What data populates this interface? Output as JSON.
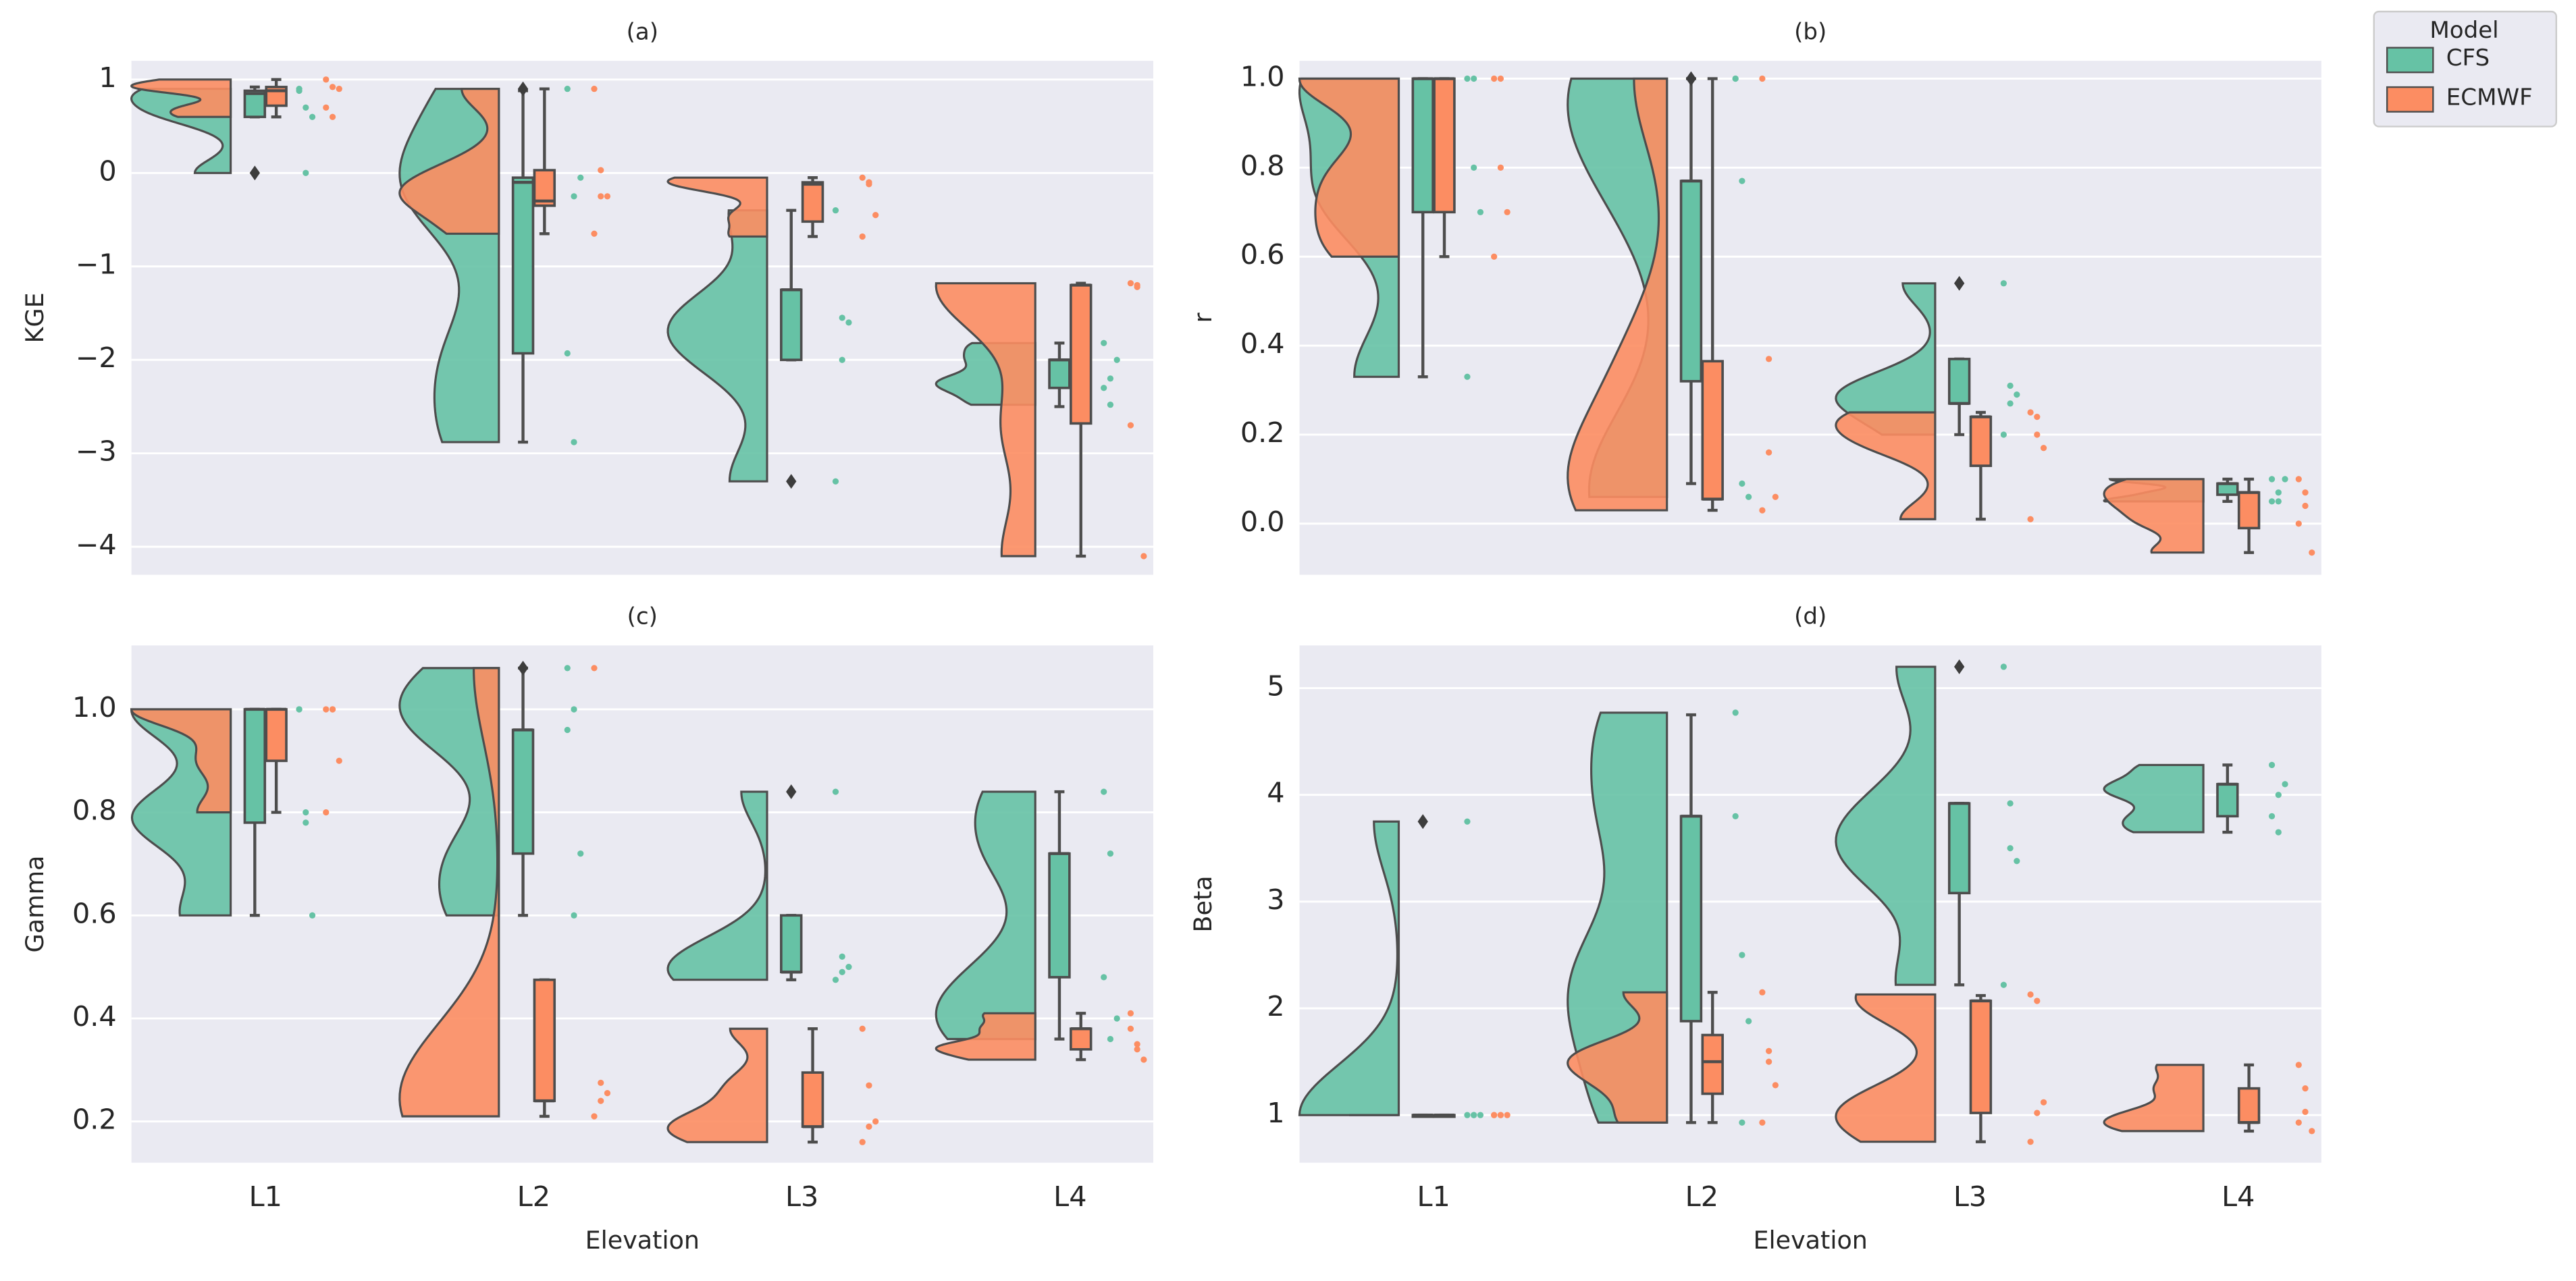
{
  "chart_data": [
    {
      "type": "raincloud",
      "title": "(a)",
      "ylabel": "KGE",
      "ylim": [
        -4.3,
        1.2
      ],
      "yticks": [
        {
          "value": -4,
          "label": "−4"
        },
        {
          "value": -3,
          "label": "−3"
        },
        {
          "value": -2,
          "label": "−2"
        },
        {
          "value": -1,
          "label": "−1"
        },
        0,
        1
      ],
      "categories": [
        null,
        null,
        null,
        null
      ],
      "grid": true,
      "series": [
        {
          "color": "#66c2a5",
          "whisker_low": [
            0.6,
            -2.88,
            -2.0,
            -2.5
          ],
          "q1": [
            0.6,
            -1.93,
            -2.0,
            -2.3
          ],
          "median": [
            0.85,
            -0.1,
            -1.25,
            -2.0
          ],
          "q3": [
            0.88,
            -0.05,
            -1.25,
            -2.0
          ],
          "whisker_high": [
            0.92,
            0.88,
            -0.4,
            -1.82
          ],
          "outliers": [
            [
              0
            ],
            [
              0.9
            ],
            [
              -3.3
            ],
            []
          ],
          "points": [
            [
              0.9,
              0.7,
              0.6,
              0.88,
              0.0
            ],
            [
              0.9,
              -0.25,
              -0.05,
              -1.93,
              -2.88
            ],
            [
              -0.4,
              -1.55,
              -1.6,
              -3.3,
              -2.0
            ],
            [
              -1.82,
              -2.48,
              -2.0,
              -2.3,
              -2.2
            ]
          ]
        },
        {
          "color": "#fc8d62",
          "whisker_low": [
            0.6,
            -0.65,
            -0.68,
            -4.1
          ],
          "q1": [
            0.72,
            -0.35,
            -0.52,
            -2.68
          ],
          "median": [
            0.88,
            -0.3,
            -0.12,
            -1.2
          ],
          "q3": [
            0.92,
            0.03,
            -0.1,
            -1.2
          ],
          "whisker_high": [
            1.0,
            0.9,
            -0.05,
            -1.18
          ],
          "outliers": [
            [],
            [],
            [],
            []
          ],
          "points": [
            [
              1.0,
              0.92,
              0.9,
              0.7,
              0.6
            ],
            [
              0.9,
              -0.25,
              -0.25,
              -0.65,
              0.03
            ],
            [
              -0.05,
              -0.12,
              -0.45,
              -0.68,
              -0.1
            ],
            [
              -1.18,
              -1.22,
              -4.1,
              -2.7,
              -1.2
            ]
          ]
        }
      ]
    },
    {
      "type": "raincloud",
      "title": "(b)",
      "ylabel": "r",
      "ylim": [
        -0.115,
        1.04
      ],
      "yticks": [
        {
          "value": 0,
          "label": "0.0"
        },
        0.2,
        0.4,
        0.6,
        0.8,
        {
          "value": 1,
          "label": "1.0"
        }
      ],
      "categories": [
        null,
        null,
        null,
        null
      ],
      "grid": true,
      "legend": "outside upper right",
      "legend_title": "Model",
      "series": [
        {
          "name": "CFS",
          "color": "#66c2a5",
          "whisker_low": [
            0.33,
            0.09,
            0.2,
            0.05
          ],
          "q1": [
            0.7,
            0.32,
            0.27,
            0.065
          ],
          "median": [
            1.0,
            0.77,
            0.27,
            0.09
          ],
          "q3": [
            1.0,
            0.77,
            0.37,
            0.09
          ],
          "whisker_high": [
            1.0,
            1.0,
            0.37,
            0.1
          ],
          "outliers": [
            [],
            [
              1.0
            ],
            [
              0.54
            ],
            []
          ],
          "points": [
            [
              1.0,
              0.8,
              0.7,
              0.33,
              1.0
            ],
            [
              1.0,
              0.09,
              0.06,
              1.0,
              0.77
            ],
            [
              0.54,
              0.31,
              0.29,
              0.2,
              0.27
            ],
            [
              0.1,
              0.05,
              0.1,
              0.05,
              0.07
            ]
          ]
        },
        {
          "name": "ECMWF",
          "color": "#fc8d62",
          "whisker_low": [
            0.6,
            0.03,
            0.01,
            -0.065
          ],
          "q1": [
            0.7,
            0.055,
            0.13,
            -0.01
          ],
          "median": [
            1.0,
            0.055,
            0.24,
            0.07
          ],
          "q3": [
            1.0,
            0.365,
            0.24,
            0.07
          ],
          "whisker_high": [
            1.0,
            1.0,
            0.25,
            0.1
          ],
          "outliers": [
            [],
            [],
            [],
            []
          ],
          "points": [
            [
              1.0,
              0.8,
              0.7,
              0.6,
              1.0
            ],
            [
              1.0,
              0.16,
              0.06,
              0.03,
              0.37
            ],
            [
              0.25,
              0.24,
              0.17,
              0.01,
              0.2
            ],
            [
              0.1,
              0.04,
              -0.065,
              0.0,
              0.07
            ]
          ]
        }
      ]
    },
    {
      "type": "raincloud",
      "title": "(c)",
      "ylabel": "Gamma",
      "xlabel": "Elevation",
      "ylim": [
        0.12,
        1.124
      ],
      "yticks": [
        0.2,
        0.4,
        0.6,
        0.8,
        {
          "value": 1,
          "label": "1.0"
        }
      ],
      "categories": [
        "L1",
        "L2",
        "L3",
        "L4"
      ],
      "grid": true,
      "series": [
        {
          "color": "#66c2a5",
          "whisker_low": [
            0.6,
            0.6,
            0.475,
            0.36
          ],
          "q1": [
            0.78,
            0.72,
            0.49,
            0.48
          ],
          "median": [
            1.0,
            0.96,
            0.49,
            0.72
          ],
          "q3": [
            1.0,
            0.96,
            0.6,
            0.72
          ],
          "whisker_high": [
            1.0,
            1.08,
            0.6,
            0.84
          ],
          "outliers": [
            [],
            [
              1.08
            ],
            [
              0.84
            ],
            []
          ],
          "points": [
            [
              1.0,
              0.78,
              0.6,
              1.0,
              0.8
            ],
            [
              1.08,
              0.6,
              0.72,
              0.96,
              1.0
            ],
            [
              0.84,
              0.52,
              0.5,
              0.475,
              0.49
            ],
            [
              0.84,
              0.36,
              0.4,
              0.48,
              0.72
            ]
          ]
        },
        {
          "color": "#fc8d62",
          "whisker_low": [
            0.8,
            0.21,
            0.16,
            0.32
          ],
          "q1": [
            0.9,
            0.24,
            0.19,
            0.34
          ],
          "median": [
            1.0,
            0.24,
            0.19,
            0.38
          ],
          "q3": [
            1.0,
            0.475,
            0.295,
            0.38
          ],
          "whisker_high": [
            1.0,
            0.475,
            0.38,
            0.41
          ],
          "outliers": [
            [],
            [],
            [],
            []
          ],
          "points": [
            [
              1.0,
              1.0,
              0.9,
              0.8,
              1.0
            ],
            [
              1.08,
              0.275,
              0.255,
              0.21,
              0.24
            ],
            [
              0.38,
              0.27,
              0.2,
              0.16,
              0.19
            ],
            [
              0.41,
              0.35,
              0.32,
              0.38,
              0.34
            ]
          ]
        }
      ]
    },
    {
      "type": "raincloud",
      "title": "(d)",
      "ylabel": "Beta",
      "xlabel": "Elevation",
      "ylim": [
        0.554,
        5.4
      ],
      "yticks": [
        1,
        2,
        3,
        4,
        5
      ],
      "categories": [
        "L1",
        "L2",
        "L3",
        "L4"
      ],
      "grid": true,
      "series": [
        {
          "color": "#66c2a5",
          "whisker_low": [
            1.0,
            0.93,
            2.22,
            3.65
          ],
          "q1": [
            1.0,
            1.88,
            3.08,
            3.8
          ],
          "median": [
            1.0,
            3.8,
            3.92,
            4.1
          ],
          "q3": [
            1.0,
            3.8,
            3.92,
            4.1
          ],
          "whisker_high": [
            1.0,
            4.75,
            3.92,
            4.28
          ],
          "outliers": [
            [
              3.75
            ],
            [],
            [
              5.2
            ],
            []
          ],
          "points": [
            [
              3.75,
              1.0,
              1.0,
              1.0,
              1.0
            ],
            [
              4.77,
              0.93,
              1.88,
              3.8,
              2.5
            ],
            [
              5.2,
              3.5,
              3.38,
              2.22,
              3.92
            ],
            [
              4.28,
              3.65,
              4.1,
              3.8,
              4.0
            ]
          ]
        },
        {
          "color": "#fc8d62",
          "whisker_low": [
            1.0,
            0.93,
            0.75,
            0.85
          ],
          "q1": [
            1.0,
            1.2,
            1.02,
            0.93
          ],
          "median": [
            1.0,
            1.5,
            2.07,
            0.93
          ],
          "q3": [
            1.0,
            1.75,
            2.07,
            1.25
          ],
          "whisker_high": [
            1.0,
            2.15,
            2.12,
            1.47
          ],
          "outliers": [
            [],
            [],
            [],
            []
          ],
          "points": [
            [
              1.0,
              1.0,
              1.0,
              1.0,
              1.0
            ],
            [
              2.15,
              1.6,
              1.28,
              0.93,
              1.5
            ],
            [
              2.13,
              2.07,
              1.12,
              0.75,
              1.02
            ],
            [
              1.47,
              1.03,
              0.85,
              0.93,
              1.25
            ]
          ]
        }
      ]
    }
  ]
}
